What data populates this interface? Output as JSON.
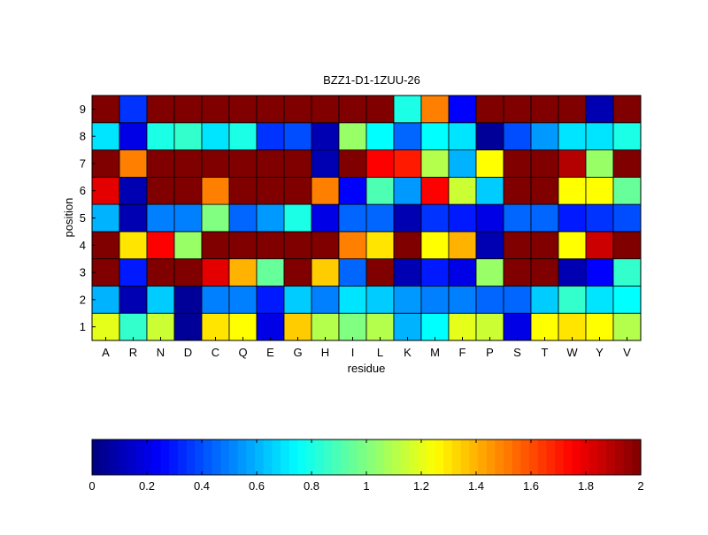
{
  "chart_data": [
    {
      "type": "heatmap",
      "title": "BZZ1-D1-1ZUU-26",
      "xlabel": "residue",
      "ylabel": "position",
      "x_categories": [
        "A",
        "R",
        "N",
        "D",
        "C",
        "Q",
        "E",
        "G",
        "H",
        "I",
        "L",
        "K",
        "M",
        "F",
        "P",
        "S",
        "T",
        "W",
        "Y",
        "V"
      ],
      "y_categories": [
        "1",
        "2",
        "3",
        "4",
        "5",
        "6",
        "7",
        "8",
        "9"
      ],
      "colormap": "jet",
      "clim": [
        0,
        2
      ],
      "grid": true,
      "values": [
        [
          1.2,
          0.85,
          1.15,
          0.05,
          1.3,
          1.25,
          0.2,
          1.35,
          1.1,
          1.0,
          1.1,
          0.6,
          0.75,
          1.2,
          1.15,
          0.2,
          1.25,
          1.3,
          1.25,
          1.1
        ],
        [
          0.6,
          0.1,
          0.65,
          0.05,
          0.5,
          0.5,
          0.3,
          0.65,
          0.5,
          0.7,
          0.65,
          0.55,
          0.5,
          0.5,
          0.45,
          0.45,
          0.65,
          0.85,
          0.7,
          0.75
        ],
        [
          2.0,
          0.3,
          2.0,
          2.0,
          1.8,
          1.4,
          0.95,
          2.0,
          1.35,
          0.45,
          2.0,
          0.1,
          0.3,
          0.2,
          1.05,
          2.0,
          2.0,
          0.1,
          0.25,
          0.85
        ],
        [
          2.0,
          1.3,
          1.75,
          1.05,
          2.0,
          2.0,
          2.0,
          2.0,
          2.0,
          1.5,
          1.3,
          2.0,
          1.25,
          1.4,
          0.1,
          2.0,
          2.0,
          1.25,
          1.85,
          2.0
        ],
        [
          0.6,
          0.1,
          0.5,
          0.5,
          1.0,
          0.45,
          0.55,
          0.8,
          0.2,
          0.45,
          0.45,
          0.1,
          0.35,
          0.3,
          0.2,
          0.45,
          0.45,
          0.3,
          0.35,
          0.4
        ],
        [
          1.8,
          0.1,
          2.0,
          2.0,
          1.5,
          2.0,
          2.0,
          2.0,
          1.5,
          0.25,
          0.9,
          0.55,
          1.75,
          1.15,
          0.65,
          2.0,
          2.0,
          1.25,
          1.25,
          0.95
        ],
        [
          2.0,
          1.5,
          2.0,
          2.0,
          2.0,
          2.0,
          2.0,
          2.0,
          0.1,
          2.0,
          1.75,
          1.7,
          1.1,
          0.6,
          1.25,
          2.0,
          2.0,
          1.9,
          1.05,
          2.0
        ],
        [
          0.7,
          0.2,
          0.8,
          0.85,
          0.7,
          0.8,
          0.35,
          0.4,
          0.1,
          1.05,
          0.75,
          0.45,
          0.75,
          0.7,
          0.05,
          0.4,
          0.55,
          0.7,
          0.7,
          0.8
        ],
        [
          2.0,
          0.35,
          2.0,
          2.0,
          2.0,
          2.0,
          2.0,
          2.0,
          2.0,
          2.0,
          2.0,
          0.8,
          1.5,
          0.25,
          2.0,
          2.0,
          2.0,
          2.0,
          0.1,
          2.0
        ]
      ]
    },
    {
      "type": "colorbar",
      "ticks": [
        0,
        0.2,
        0.4,
        0.6,
        0.8,
        1,
        1.2,
        1.4,
        1.6,
        1.8,
        2
      ],
      "tick_labels": [
        "0",
        "0.2",
        "0.4",
        "0.6",
        "0.8",
        "1",
        "1.2",
        "1.4",
        "1.6",
        "1.8",
        "2"
      ],
      "range": [
        0,
        2
      ],
      "colormap": "jet"
    }
  ]
}
